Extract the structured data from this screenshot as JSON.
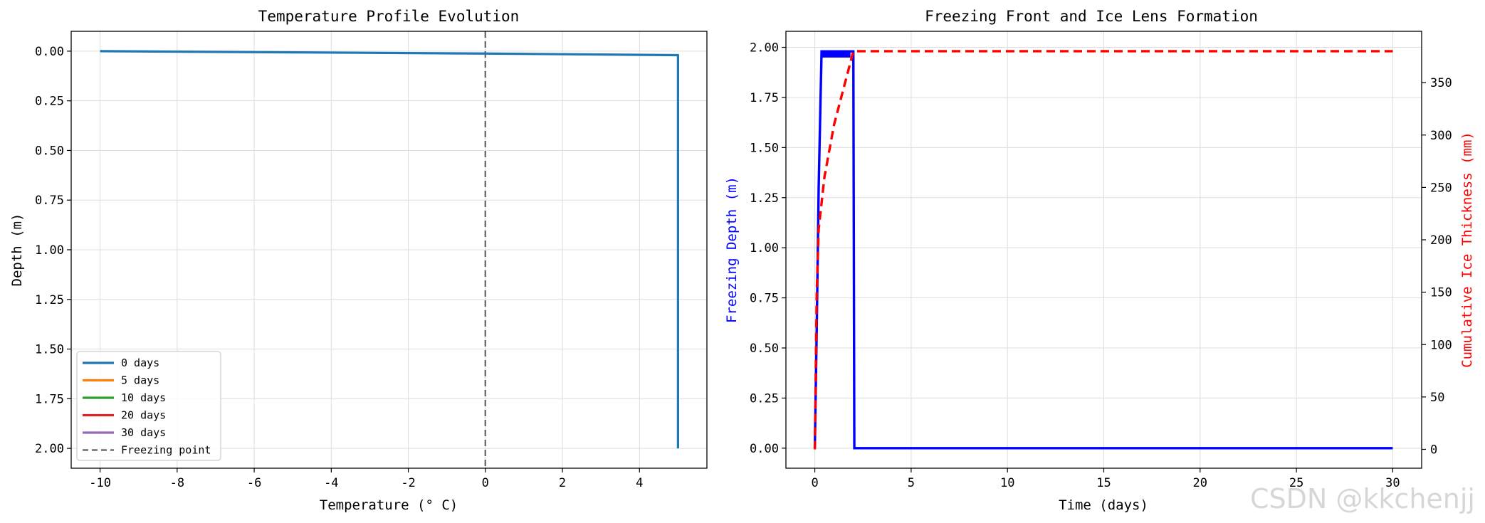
{
  "watermark": "CSDN @kkchenjj",
  "colors": {
    "c0": "#1f77b4",
    "c5": "#ff7f0e",
    "c10": "#2ca02c",
    "c20": "#d62728",
    "c30": "#9467bd",
    "freezing_line": "#6e6e6e",
    "front": "#0000ff",
    "ice": "#ff0000",
    "grid": "#dddddd"
  },
  "chart_data": [
    {
      "type": "line",
      "title": "Temperature Profile Evolution",
      "xlabel": "Temperature (° C)",
      "ylabel": "Depth (m)",
      "xlim": [
        -10.75,
        5.75
      ],
      "ylim": [
        2.1,
        -0.1
      ],
      "y_inverted": true,
      "grid": true,
      "x_ticks": [
        "-10",
        "-8",
        "-6",
        "-4",
        "-2",
        "0",
        "2",
        "4"
      ],
      "y_ticks": [
        "0.00",
        "0.25",
        "0.50",
        "0.75",
        "1.00",
        "1.25",
        "1.50",
        "1.75",
        "2.00"
      ],
      "legend_position": "lower-left",
      "series": [
        {
          "name": "0 days",
          "color": "#1f77b4",
          "x": [
            -10,
            0,
            5,
            5
          ],
          "y": [
            0.0,
            0.012,
            0.02,
            2.0
          ]
        },
        {
          "name": "5 days",
          "color": "#ff7f0e",
          "x": [],
          "y": []
        },
        {
          "name": "10 days",
          "color": "#2ca02c",
          "x": [],
          "y": []
        },
        {
          "name": "20 days",
          "color": "#d62728",
          "x": [],
          "y": []
        },
        {
          "name": "30 days",
          "color": "#9467bd",
          "x": [],
          "y": []
        }
      ],
      "reference_lines": [
        {
          "name": "Freezing point",
          "axis": "x",
          "value": 0,
          "style": "dashed"
        }
      ]
    },
    {
      "type": "line",
      "title": "Freezing Front and Ice Lens Formation",
      "xlabel": "Time (days)",
      "ylabel": "Freezing Depth (m)",
      "y2label": "Cumulative Ice Thickness (mm)",
      "xlim": [
        -1.5,
        31.5
      ],
      "ylim": [
        -0.1,
        2.08
      ],
      "y2lim": [
        -18,
        399
      ],
      "grid": true,
      "x_ticks": [
        "0",
        "5",
        "10",
        "15",
        "20",
        "25",
        "30"
      ],
      "y_ticks": [
        "0.00",
        "0.25",
        "0.50",
        "0.75",
        "1.00",
        "1.25",
        "1.50",
        "1.75",
        "2.00"
      ],
      "y2_ticks": [
        "0",
        "50",
        "100",
        "150",
        "200",
        "250",
        "300",
        "350"
      ],
      "series": [
        {
          "name": "Freezing Depth (m)",
          "axis": "left",
          "color": "#0000ff",
          "style": "solid",
          "x": [
            0,
            0.1,
            0.2,
            0.35,
            2.0,
            2.05,
            30
          ],
          "y": [
            0,
            0.6,
            1.3,
            1.98,
            1.98,
            0,
            0
          ]
        },
        {
          "name": "Cumulative Ice Thickness (mm)",
          "axis": "right",
          "color": "#ff0000",
          "style": "dashed",
          "x": [
            0,
            0.1,
            0.2,
            0.5,
            1.0,
            2.0,
            30
          ],
          "y": [
            0,
            150,
            210,
            260,
            310,
            380,
            380
          ]
        }
      ]
    }
  ]
}
